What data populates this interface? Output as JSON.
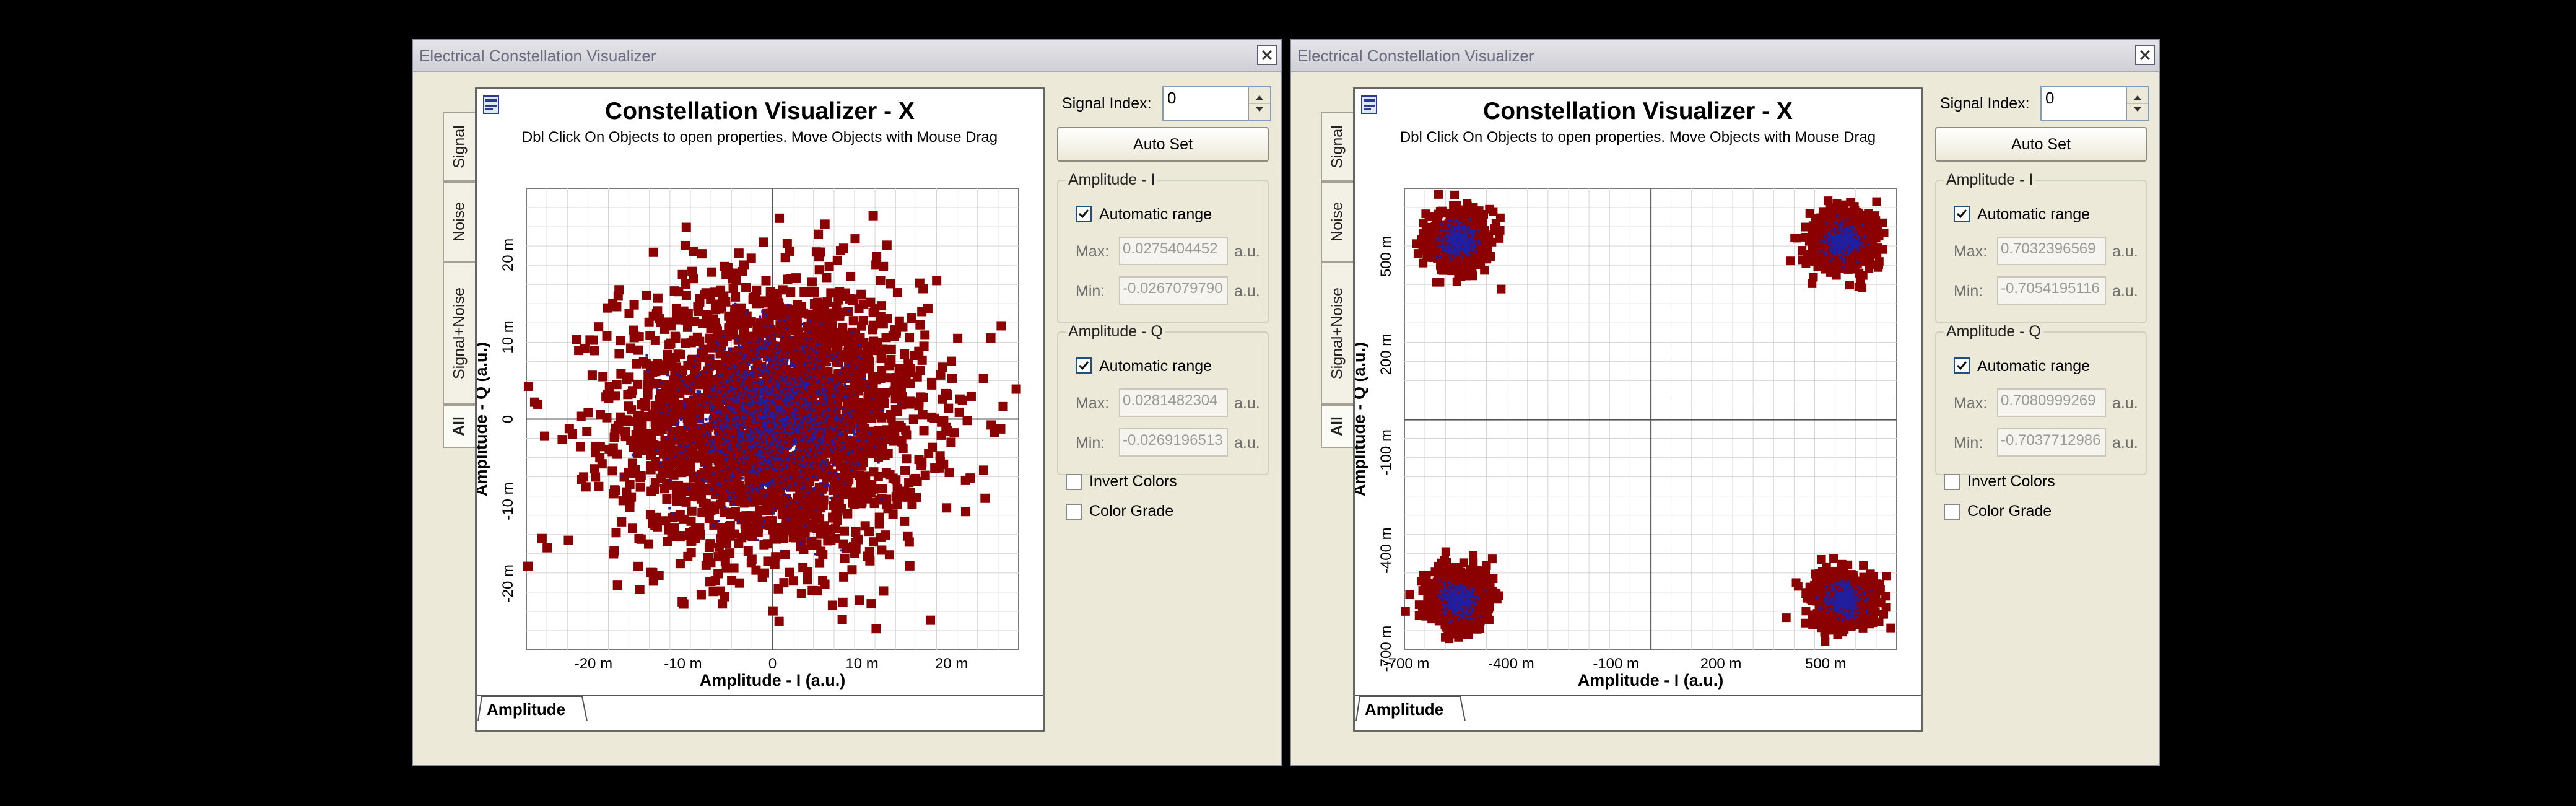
{
  "left": {
    "window_title": "Electrical Constellation Visualizer",
    "tabs": [
      "Signal",
      "Noise",
      "Signal+Noise",
      "All"
    ],
    "plot_title": "Constellation Visualizer - X",
    "plot_hint": "Dbl Click On Objects to open properties.  Move Objects with Mouse Drag",
    "bottom_tab": "Amplitude",
    "signal_index_label": "Signal Index:",
    "signal_index_value": "0",
    "auto_set_label": "Auto Set",
    "amp_i": {
      "group": "Amplitude - I",
      "auto": "Automatic range",
      "max_label": "Max:",
      "max_value": "0.0275404452",
      "min_label": "Min:",
      "min_value": "-0.0267079790",
      "unit": "a.u."
    },
    "amp_q": {
      "group": "Amplitude - Q",
      "auto": "Automatic range",
      "max_label": "Max:",
      "max_value": "0.0281482304",
      "min_label": "Min:",
      "min_value": "-0.0269196513",
      "unit": "a.u."
    },
    "invert_colors": "Invert Colors",
    "color_grade": "Color Grade"
  },
  "right": {
    "window_title": "Electrical Constellation Visualizer",
    "tabs": [
      "Signal",
      "Noise",
      "Signal+Noise",
      "All"
    ],
    "plot_title": "Constellation Visualizer - X",
    "plot_hint": "Dbl Click On Objects to open properties.  Move Objects with Mouse Drag",
    "bottom_tab": "Amplitude",
    "signal_index_label": "Signal Index:",
    "signal_index_value": "0",
    "auto_set_label": "Auto Set",
    "amp_i": {
      "group": "Amplitude - I",
      "auto": "Automatic range",
      "max_label": "Max:",
      "max_value": "0.7032396569",
      "min_label": "Min:",
      "min_value": "-0.7054195116",
      "unit": "a.u."
    },
    "amp_q": {
      "group": "Amplitude - Q",
      "auto": "Automatic range",
      "max_label": "Max:",
      "max_value": "0.7080999269",
      "min_label": "Min:",
      "min_value": "-0.7037712986",
      "unit": "a.u."
    },
    "invert_colors": "Invert Colors",
    "color_grade": "Color Grade"
  },
  "colors": {
    "noise_point": "#8b0000",
    "signal_point": "#1f1f9f",
    "grid": "#d4d4d4"
  },
  "chart_data": [
    {
      "type": "scatter",
      "title": "Constellation Visualizer - X",
      "xlabel": "Amplitude - I (a.u.)",
      "ylabel": "Amplitude - Q (a.u.)",
      "xlim": [
        -0.0275,
        0.0275
      ],
      "ylim": [
        -0.0281,
        0.0281
      ],
      "x_ticks": [
        "-20 m",
        "-10 m",
        "0",
        "10 m",
        "20 m"
      ],
      "y_ticks": [
        "-20 m",
        "-10 m",
        "0",
        "10 m",
        "20 m"
      ],
      "grid": true,
      "series": [
        {
          "description": "noisy samples centred at origin",
          "center": [
            0,
            0
          ],
          "spread": 0.0085
        }
      ]
    },
    {
      "type": "scatter",
      "title": "Constellation Visualizer - X",
      "xlabel": "Amplitude - I (a.u.)",
      "ylabel": "Amplitude - Q (a.u.)",
      "xlim": [
        -0.7054,
        0.7032
      ],
      "ylim": [
        -0.7038,
        0.7081
      ],
      "x_ticks": [
        "-700 m",
        "-400 m",
        "-100 m",
        "200 m",
        "500 m"
      ],
      "y_ticks": [
        "-700 m",
        "-400 m",
        "-100 m",
        "200 m",
        "500 m"
      ],
      "grid": true,
      "series": [
        {
          "description": "QPSK clusters",
          "centers": [
            [
              -0.55,
              0.55
            ],
            [
              0.55,
              0.55
            ],
            [
              -0.55,
              -0.55
            ],
            [
              0.55,
              -0.55
            ]
          ],
          "spread": 0.045
        }
      ]
    }
  ]
}
